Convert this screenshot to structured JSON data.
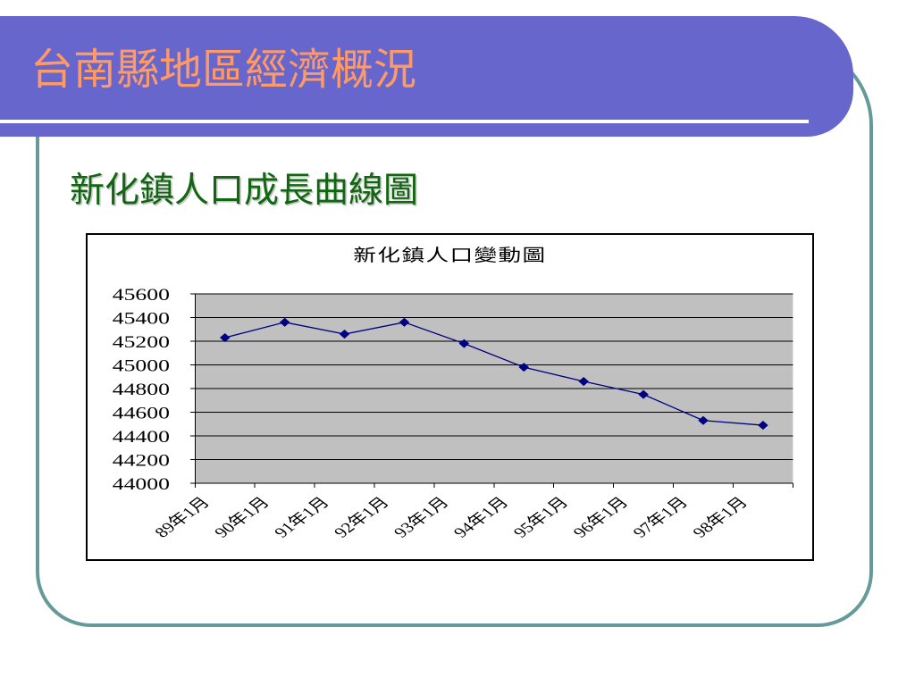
{
  "slide": {
    "title": "台南縣地區經濟概況",
    "subtitle": "新化鎮人口成長曲線圖"
  },
  "colors": {
    "header_band": "#6666CC",
    "header_rule": "#FFFFFF",
    "title_text": "#FF9966",
    "subtitle_text": "#116611",
    "frame": "#669999",
    "plot_area": "#C0C0C0",
    "gridline": "#000000",
    "series_line": "#000080"
  },
  "chart_data": {
    "type": "line",
    "title": "新化鎮人口變動圖",
    "categories": [
      "89年1月",
      "90年1月",
      "91年1月",
      "92年1月",
      "93年1月",
      "94年1月",
      "95年1月",
      "96年1月",
      "97年1月",
      "98年1月"
    ],
    "series": [
      {
        "values": [
          45230,
          45360,
          45260,
          45360,
          45180,
          44980,
          44860,
          44750,
          44530,
          44490
        ]
      }
    ],
    "ylim": [
      44000,
      45600
    ],
    "y_ticks": [
      44000,
      44200,
      44400,
      44600,
      44800,
      45000,
      45200,
      45400,
      45600
    ],
    "grid": true,
    "legend": "none"
  }
}
